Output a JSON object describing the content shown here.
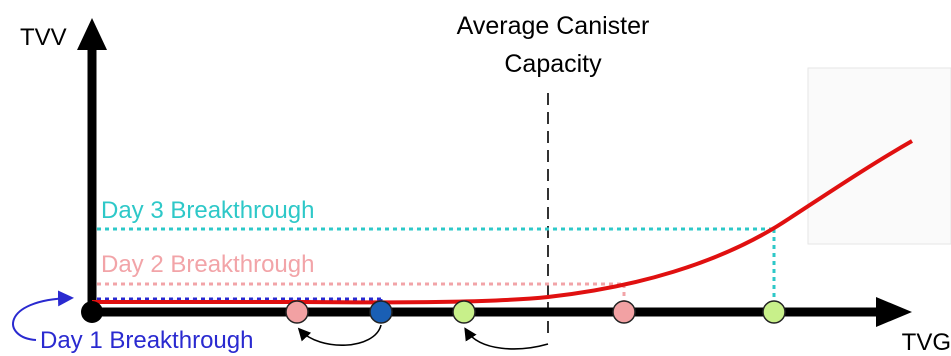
{
  "axes": {
    "y_label": "TVV",
    "x_label": "TVG"
  },
  "annotations": {
    "capacity_line1": "Average Canister",
    "capacity_line2": "Capacity"
  },
  "breakthroughs": {
    "day1": "Day 1 Breakthrough",
    "day2": "Day 2 Breakthrough",
    "day3": "Day 3 Breakthrough"
  },
  "colors": {
    "axis": "#000000",
    "curve": "#e01010",
    "day1": "#2a2ad0",
    "day2": "#f2a4a8",
    "day3": "#2ec8c8",
    "dot_pink": "#f2a1a3",
    "dot_blue": "#1a5fb4",
    "dot_green": "#c8f08a",
    "inset_bg": "#fbfbfb"
  }
}
